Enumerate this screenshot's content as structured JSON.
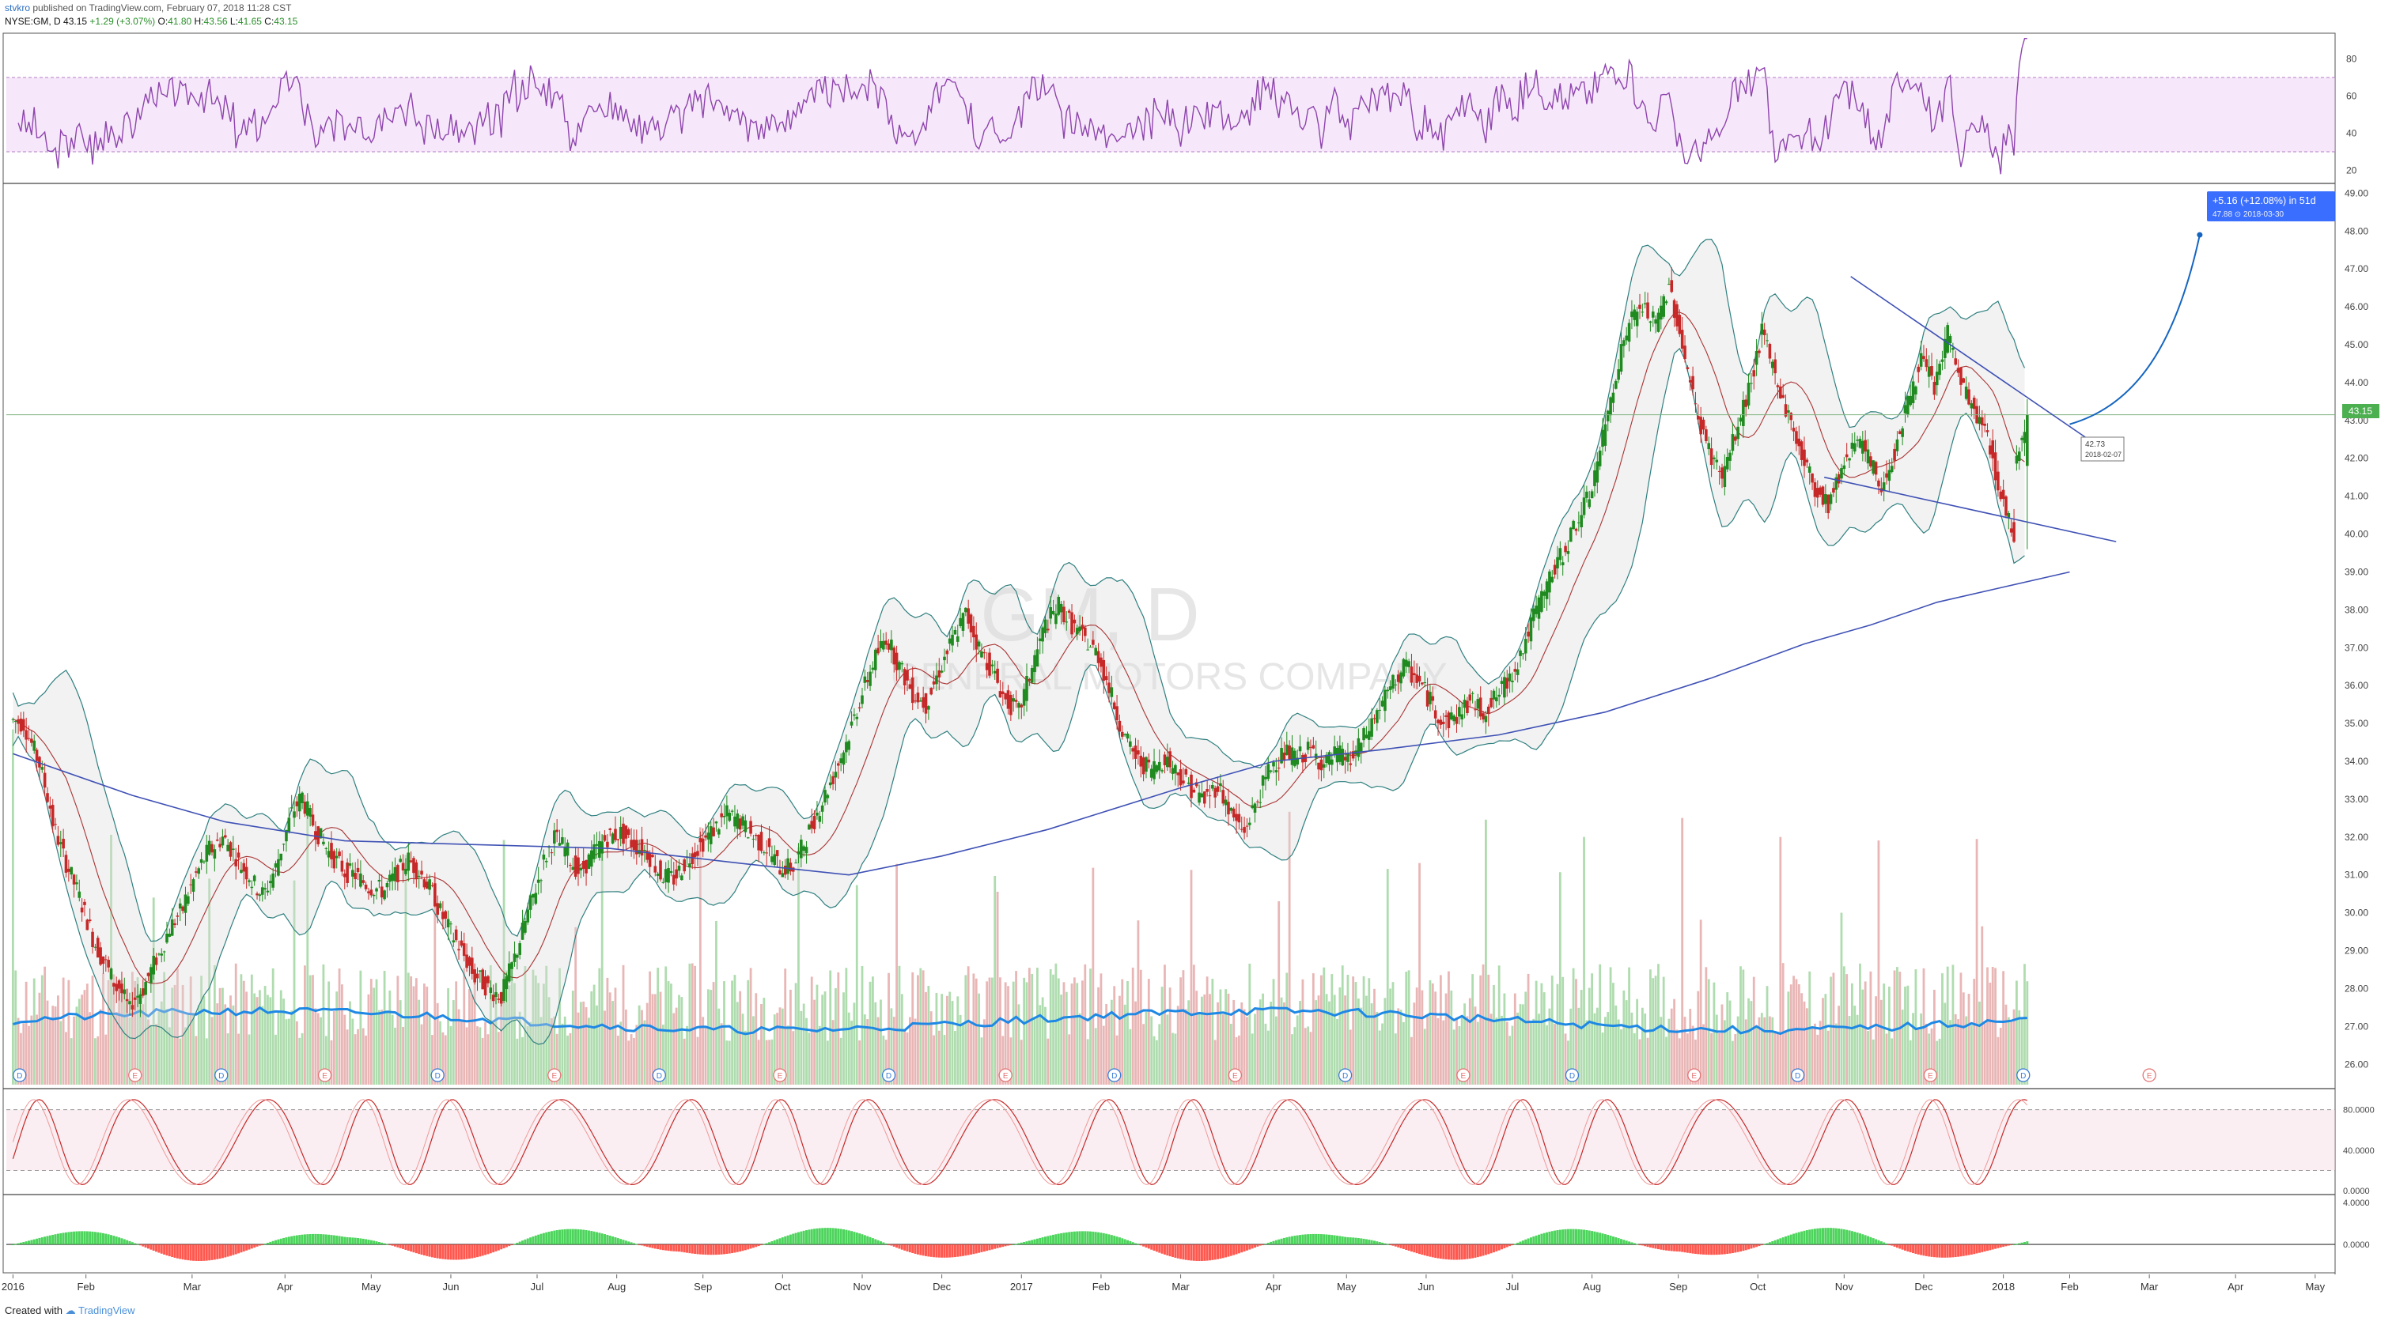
{
  "header": {
    "publisher": "stvkro",
    "published_text": "published on TradingView.com, February 07, 2018 11:28 CST",
    "symbol": "NYSE:GM, D",
    "last": "43.15",
    "change": "+1.29 (+3.07%)",
    "open_label": "O:",
    "open": "41.80",
    "high_label": "H:",
    "high": "43.56",
    "low_label": "L:",
    "low": "41.65",
    "close_label": "C:",
    "close": "43.15"
  },
  "watermark": {
    "symbol": "GM, D",
    "company": "GENERAL MOTORS COMPANY"
  },
  "price_label": "43.15",
  "projection": {
    "line1": "+5.16 (+12.08%) in 51d",
    "line2": "47.88  ⊙ 2018-03-30"
  },
  "cursor_box": {
    "line1": "42.73",
    "line2": "2018-02-07"
  },
  "event_markers": [
    {
      "t": 0.5,
      "k": "D"
    },
    {
      "t": 9.2,
      "k": "E"
    },
    {
      "t": 15.7,
      "k": "D"
    },
    {
      "t": 23.5,
      "k": "E"
    },
    {
      "t": 32.0,
      "k": "D"
    },
    {
      "t": 40.8,
      "k": "E"
    },
    {
      "t": 48.7,
      "k": "D"
    },
    {
      "t": 57.8,
      "k": "E"
    },
    {
      "t": 66.0,
      "k": "D"
    },
    {
      "t": 74.8,
      "k": "E"
    },
    {
      "t": 83.0,
      "k": "D"
    },
    {
      "t": 92.1,
      "k": "E"
    },
    {
      "t": 100.4,
      "k": "D"
    },
    {
      "t": 109.3,
      "k": "E"
    },
    {
      "t": 117.5,
      "k": "D"
    },
    {
      "t": 126.7,
      "k": "E"
    },
    {
      "t": 134.5,
      "k": "D"
    },
    {
      "t": 144.5,
      "k": "E"
    },
    {
      "t": 151.5,
      "k": "D"
    },
    {
      "t": 161.0,
      "k": "E"
    }
  ],
  "chart_data": {
    "type": "candlestick",
    "symbol": "NYSE:GM",
    "interval": "D",
    "x_axis_labels": [
      {
        "t": 0,
        "label": "2016"
      },
      {
        "t": 5.5,
        "label": "Feb"
      },
      {
        "t": 13.5,
        "label": "Mar"
      },
      {
        "t": 20.5,
        "label": "Apr"
      },
      {
        "t": 27,
        "label": "May"
      },
      {
        "t": 33,
        "label": "Jun"
      },
      {
        "t": 39.5,
        "label": "Jul"
      },
      {
        "t": 45.5,
        "label": "Aug"
      },
      {
        "t": 52,
        "label": "Sep"
      },
      {
        "t": 58,
        "label": "Oct"
      },
      {
        "t": 64,
        "label": "Nov"
      },
      {
        "t": 70,
        "label": "Dec"
      },
      {
        "t": 76,
        "label": "2017"
      },
      {
        "t": 82,
        "label": "Feb"
      },
      {
        "t": 88,
        "label": "Mar"
      },
      {
        "t": 95,
        "label": "Apr"
      },
      {
        "t": 100.5,
        "label": "May"
      },
      {
        "t": 106.5,
        "label": "Jun"
      },
      {
        "t": 113,
        "label": "Jul"
      },
      {
        "t": 119,
        "label": "Aug"
      },
      {
        "t": 125.5,
        "label": "Sep"
      },
      {
        "t": 131.5,
        "label": "Oct"
      },
      {
        "t": 138,
        "label": "Nov"
      },
      {
        "t": 144,
        "label": "Dec"
      },
      {
        "t": 150,
        "label": "2018"
      },
      {
        "t": 155,
        "label": "Feb"
      },
      {
        "t": 161,
        "label": "Mar"
      },
      {
        "t": 167.5,
        "label": "Apr"
      },
      {
        "t": 173.5,
        "label": "May"
      }
    ],
    "x_range": [
      -0.5,
      175
    ],
    "price_axis": {
      "ticks": [
        "26.00",
        "27.00",
        "28.00",
        "29.00",
        "30.00",
        "31.00",
        "32.00",
        "33.00",
        "34.00",
        "35.00",
        "36.00",
        "37.00",
        "38.00",
        "39.00",
        "40.00",
        "41.00",
        "42.00",
        "43.00",
        "44.00",
        "45.00",
        "46.00",
        "47.00",
        "48.00",
        "49.00"
      ],
      "range": [
        25.4,
        49.3
      ]
    },
    "rsi_axis": {
      "ticks": [
        "20",
        "40",
        "60",
        "80"
      ],
      "range": [
        13,
        93
      ],
      "band": [
        30,
        70
      ]
    },
    "stoch_axis": {
      "ticks": [
        "0.0000",
        "40.0000",
        "80.0000"
      ],
      "range": [
        -3,
        100
      ],
      "band": [
        20,
        80
      ]
    },
    "macd_axis": {
      "ticks": [
        "4.0000",
        "0.0000"
      ],
      "range": [
        -3.1,
        4.7
      ]
    },
    "weekly_ohlc": [
      [
        35.1,
        35.0
      ],
      [
        35.0,
        34.1
      ],
      [
        34.2,
        32.8
      ],
      [
        32.6,
        31.5
      ],
      [
        31.5,
        30.6
      ],
      [
        30.6,
        29.6
      ],
      [
        29.5,
        28.7
      ],
      [
        28.8,
        28.0
      ],
      [
        28.2,
        27.4
      ],
      [
        27.6,
        28.0
      ],
      [
        28.0,
        28.8
      ],
      [
        28.7,
        29.6
      ],
      [
        29.6,
        30.1
      ],
      [
        30.2,
        31.0
      ],
      [
        31.0,
        31.7
      ],
      [
        31.6,
        32.0
      ],
      [
        32.0,
        31.5
      ],
      [
        31.4,
        31.0
      ],
      [
        30.9,
        30.5
      ],
      [
        30.4,
        31.2
      ],
      [
        31.2,
        32.4
      ],
      [
        32.5,
        33.1
      ],
      [
        33.0,
        32.2
      ],
      [
        32.2,
        31.6
      ],
      [
        31.6,
        31.2
      ],
      [
        31.1,
        31.0
      ],
      [
        31.0,
        30.7
      ],
      [
        30.7,
        30.6
      ],
      [
        30.5,
        31.0
      ],
      [
        31.0,
        31.4
      ],
      [
        31.4,
        31.0
      ],
      [
        31.0,
        30.4
      ],
      [
        30.3,
        29.6
      ],
      [
        29.6,
        29.0
      ],
      [
        29.0,
        28.3
      ],
      [
        28.4,
        28.0
      ],
      [
        28.0,
        27.8
      ],
      [
        27.8,
        28.8
      ],
      [
        28.8,
        30.0
      ],
      [
        30.0,
        31.1
      ],
      [
        31.2,
        32.0
      ],
      [
        32.0,
        31.6
      ],
      [
        31.5,
        31.0
      ],
      [
        31.1,
        31.6
      ],
      [
        31.6,
        32.0
      ],
      [
        32.0,
        32.1
      ],
      [
        32.1,
        31.8
      ],
      [
        31.8,
        31.6
      ],
      [
        31.6,
        31.0
      ],
      [
        31.0,
        30.9
      ],
      [
        30.9,
        31.4
      ],
      [
        31.4,
        31.8
      ],
      [
        31.8,
        32.2
      ],
      [
        32.2,
        32.6
      ],
      [
        32.6,
        32.4
      ],
      [
        32.4,
        32.0
      ],
      [
        32.0,
        31.7
      ],
      [
        31.7,
        31.2
      ],
      [
        31.2,
        31.2
      ],
      [
        31.2,
        32.0
      ],
      [
        32.0,
        32.8
      ],
      [
        32.8,
        33.6
      ],
      [
        33.6,
        34.5
      ],
      [
        34.5,
        35.6
      ],
      [
        35.6,
        36.6
      ],
      [
        36.6,
        37.3
      ],
      [
        37.3,
        36.5
      ],
      [
        36.5,
        35.8
      ],
      [
        35.8,
        35.5
      ],
      [
        35.5,
        36.4
      ],
      [
        36.4,
        37.2
      ],
      [
        37.2,
        37.9
      ],
      [
        37.9,
        37.0
      ],
      [
        37.0,
        36.4
      ],
      [
        36.4,
        35.6
      ],
      [
        35.6,
        35.3
      ],
      [
        35.3,
        36.5
      ],
      [
        36.5,
        37.6
      ],
      [
        37.6,
        38.1
      ],
      [
        38.1,
        37.6
      ],
      [
        37.6,
        37.2
      ],
      [
        37.2,
        36.8
      ],
      [
        36.8,
        35.7
      ],
      [
        35.7,
        34.6
      ],
      [
        34.6,
        34.0
      ],
      [
        34.0,
        33.8
      ],
      [
        33.8,
        34.1
      ],
      [
        34.1,
        33.7
      ],
      [
        33.7,
        33.3
      ],
      [
        33.3,
        33.0
      ],
      [
        33.0,
        33.4
      ],
      [
        33.4,
        32.6
      ],
      [
        32.6,
        32.1
      ],
      [
        32.2,
        33.0
      ],
      [
        33.0,
        33.9
      ],
      [
        33.9,
        34.2
      ],
      [
        34.2,
        34.1
      ],
      [
        34.1,
        34.3
      ],
      [
        34.3,
        33.9
      ],
      [
        33.9,
        34.2
      ],
      [
        34.2,
        34.0
      ],
      [
        34.0,
        34.6
      ],
      [
        34.6,
        35.3
      ],
      [
        35.3,
        35.9
      ],
      [
        35.9,
        36.5
      ],
      [
        36.5,
        36.2
      ],
      [
        36.2,
        35.6
      ],
      [
        35.6,
        35.0
      ],
      [
        35.0,
        35.2
      ],
      [
        35.2,
        35.6
      ],
      [
        35.6,
        35.3
      ],
      [
        35.3,
        35.7
      ],
      [
        35.7,
        36.2
      ],
      [
        36.2,
        37.0
      ],
      [
        37.0,
        38.0
      ],
      [
        38.0,
        38.8
      ],
      [
        38.8,
        39.5
      ],
      [
        39.5,
        40.3
      ],
      [
        40.3,
        41.0
      ],
      [
        41.0,
        42.5
      ],
      [
        42.5,
        44.3
      ],
      [
        44.3,
        45.6
      ],
      [
        45.6,
        46.0
      ],
      [
        46.0,
        45.5
      ],
      [
        45.5,
        46.6
      ],
      [
        46.6,
        45.0
      ],
      [
        45.0,
        43.3
      ],
      [
        43.3,
        42.2
      ],
      [
        42.2,
        41.5
      ],
      [
        41.5,
        42.6
      ],
      [
        42.6,
        43.8
      ],
      [
        43.8,
        45.3
      ],
      [
        45.3,
        44.2
      ],
      [
        44.2,
        43.1
      ],
      [
        43.1,
        42.1
      ],
      [
        42.1,
        41.2
      ],
      [
        41.2,
        40.8
      ],
      [
        40.8,
        41.7
      ],
      [
        41.7,
        42.6
      ],
      [
        42.6,
        42.0
      ],
      [
        42.0,
        41.2
      ],
      [
        41.2,
        42.2
      ],
      [
        42.2,
        43.5
      ],
      [
        43.5,
        44.6
      ],
      [
        44.6,
        43.9
      ],
      [
        43.9,
        45.3
      ],
      [
        45.3,
        44.0
      ],
      [
        44.0,
        43.2
      ],
      [
        43.2,
        42.6
      ],
      [
        42.6,
        41.0
      ],
      [
        41.0,
        40.0
      ],
      [
        41.8,
        43.15
      ]
    ],
    "sma_200_points": [
      [
        0,
        34.2
      ],
      [
        9,
        33.1
      ],
      [
        16,
        32.4
      ],
      [
        25,
        31.9
      ],
      [
        35,
        31.8
      ],
      [
        45,
        31.7
      ],
      [
        55,
        31.3
      ],
      [
        63,
        31.0
      ],
      [
        70,
        31.5
      ],
      [
        78,
        32.2
      ],
      [
        88,
        33.3
      ],
      [
        95,
        34.0
      ],
      [
        103,
        34.3
      ],
      [
        112,
        34.7
      ],
      [
        120,
        35.3
      ],
      [
        128,
        36.2
      ],
      [
        135,
        37.1
      ],
      [
        140,
        37.6
      ],
      [
        145,
        38.2
      ],
      [
        150,
        38.6
      ],
      [
        155,
        39.0
      ]
    ],
    "projection_points": [
      [
        155,
        42.9
      ],
      [
        160,
        43.4
      ],
      [
        163,
        45.0
      ],
      [
        164.8,
        47.9
      ]
    ],
    "trendline_upper": [
      [
        138.5,
        46.8
      ],
      [
        158.5,
        42.0
      ]
    ],
    "trendline_lower": [
      [
        136.5,
        41.5
      ],
      [
        158.5,
        39.8
      ]
    ],
    "horizontal_level": 43.15
  }
}
